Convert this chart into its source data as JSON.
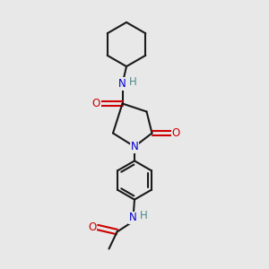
{
  "bg_color": "#e8e8e8",
  "bond_color": "#1a1a1a",
  "N_color": "#0000cd",
  "O_color": "#cc0000",
  "H_color": "#4a8a8a",
  "line_width": 1.5,
  "font_size_atom": 8.5,
  "fig_width": 3.0,
  "fig_height": 3.0,
  "xlim": [
    0,
    10
  ],
  "ylim": [
    0,
    10
  ]
}
